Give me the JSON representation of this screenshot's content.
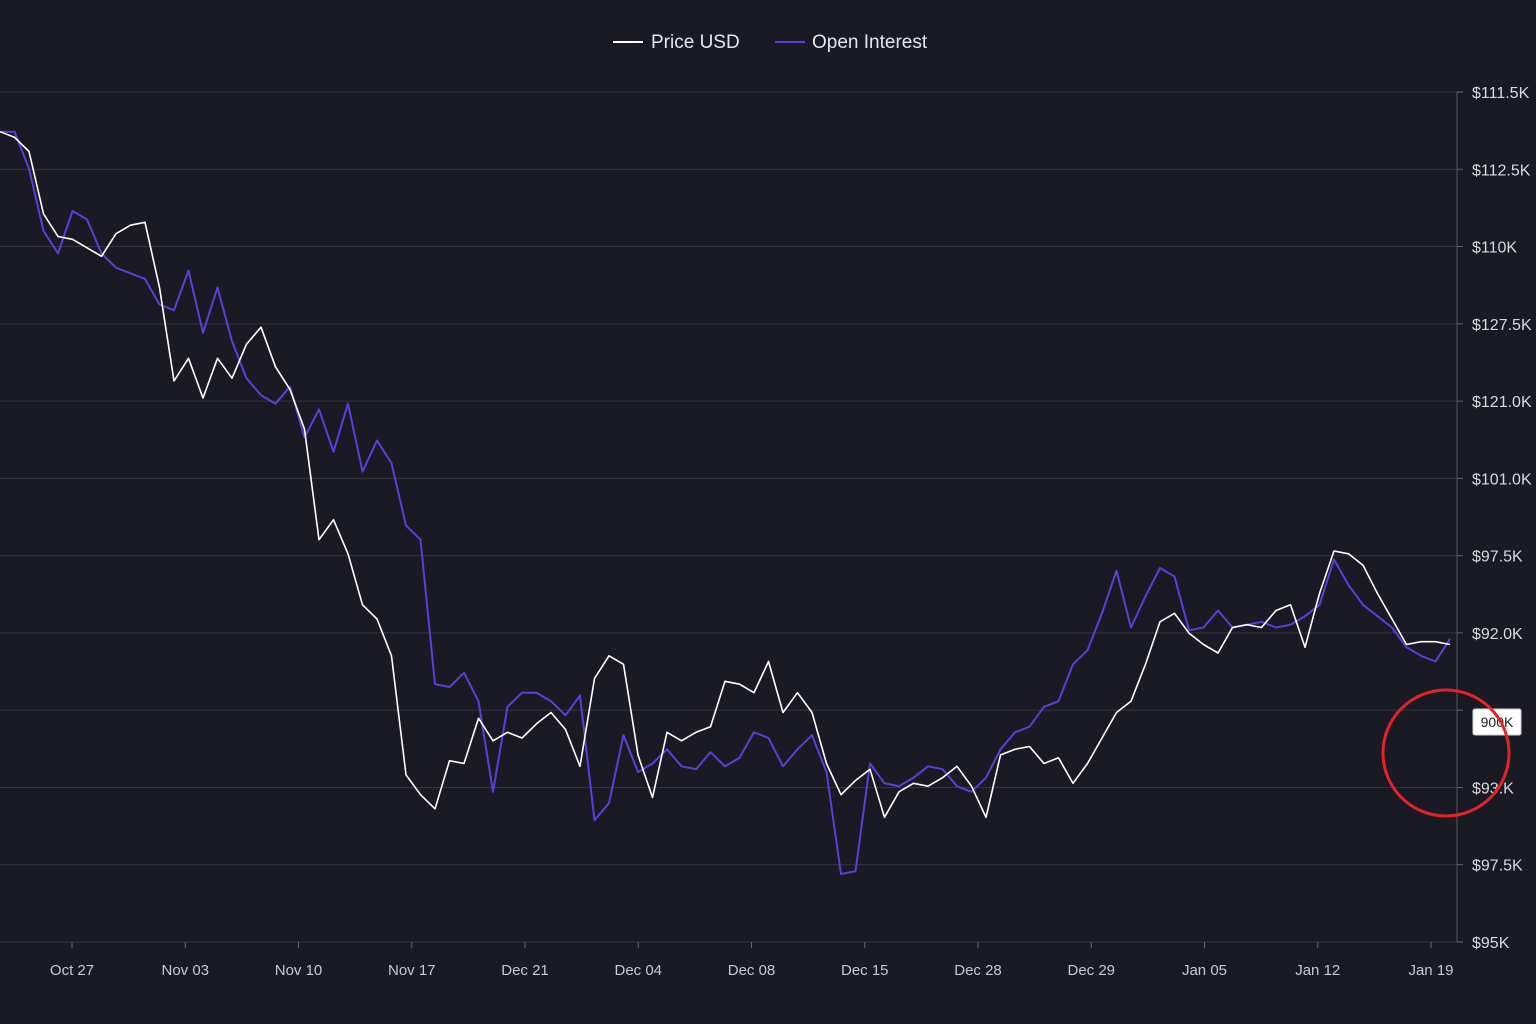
{
  "legend": {
    "price_label": "Price USD",
    "oi_label": "Open Interest"
  },
  "colors": {
    "background": "#1a1a25",
    "price_line": "#ffffff",
    "oi_line": "#5b3fd6",
    "grid": "#34343f",
    "highlight_circle": "#e0242a",
    "tooltip_bg": "#ffffff",
    "tooltip_text": "#222222"
  },
  "tooltip": {
    "label": "900K"
  },
  "chart_data": {
    "type": "line",
    "title": "",
    "xlabel": "",
    "ylabel": "",
    "legend_position": "top-center",
    "grid": "horizontal",
    "x_ticks": [
      "Oct 27",
      "Nov 03",
      "Nov 10",
      "Nov 17",
      "Dec 21",
      "Dec 04",
      "Dec 08",
      "Dec 15",
      "Dec 28",
      "Dec 29",
      "Jan 05",
      "Jan 12",
      "Jan 19"
    ],
    "y_ticks": [
      "$111.5K",
      "$112.5K",
      "$110K",
      "$127.5K",
      "$121.0K",
      "$101.0K",
      "$97.5K",
      "$92.0K",
      "",
      "$93.K",
      "$97.5K",
      "$95K"
    ],
    "y_scale": {
      "top": 115,
      "bottom": 85,
      "unit": "K USD",
      "note": "approximate, labels inconsistent"
    },
    "x_range": [
      0,
      100
    ],
    "series": [
      {
        "name": "Price USD",
        "color": "#ffffff",
        "x": [
          0,
          1,
          2,
          3,
          4,
          5,
          6,
          7,
          8,
          9,
          10,
          11,
          12,
          13,
          14,
          15,
          16,
          17,
          18,
          19,
          20,
          21,
          22,
          23,
          24,
          25,
          26,
          27,
          28,
          29,
          30,
          31,
          32,
          33,
          34,
          35,
          36,
          37,
          38,
          39,
          40,
          41,
          42,
          43,
          44,
          45,
          46,
          47,
          48,
          49,
          50,
          51,
          52,
          53,
          54,
          55,
          56,
          57,
          58,
          59,
          60,
          61,
          62,
          63,
          64,
          65,
          66,
          67,
          68,
          69,
          70,
          71,
          72,
          73,
          74,
          75,
          76,
          77,
          78,
          79,
          80,
          81,
          82,
          83,
          84,
          85,
          86,
          87,
          88,
          89,
          90,
          91,
          92,
          93,
          94,
          95,
          96,
          97,
          98,
          99,
          100
        ],
        "values": [
          113.6,
          113.4,
          112.9,
          110.7,
          109.9,
          109.8,
          109.5,
          109.2,
          110,
          110.3,
          110.4,
          108.1,
          104.8,
          105.6,
          104.2,
          105.6,
          104.9,
          106.1,
          106.7,
          105.3,
          104.5,
          103.1,
          99.2,
          99.9,
          98.7,
          96.9,
          96.4,
          95.1,
          90.9,
          90.2,
          89.7,
          91.4,
          91.3,
          92.9,
          92.1,
          92.4,
          92.2,
          92.7,
          93.1,
          92.5,
          91.2,
          94.3,
          95.1,
          94.8,
          91.6,
          90.1,
          92.4,
          92.1,
          92.4,
          92.6,
          94.2,
          94.1,
          93.8,
          94.9,
          93.1,
          93.8,
          93.1,
          91.3,
          90.2,
          90.7,
          91.1,
          89.4,
          90.3,
          90.6,
          90.5,
          90.8,
          91.2,
          90.5,
          89.4,
          91.6,
          91.8,
          91.9,
          91.3,
          91.5,
          90.6,
          91.3,
          92.2,
          93.1,
          93.5,
          94.8,
          96.3,
          96.6,
          95.9,
          95.5,
          95.2,
          96.1,
          96.2,
          96.1,
          96.7,
          96.9,
          95.4,
          97.3,
          98.8,
          98.7,
          98.3,
          97.3,
          96.4,
          95.5,
          95.6,
          95.6,
          95.5
        ]
      },
      {
        "name": "Open Interest",
        "color": "#5b3fd6",
        "x": [
          0,
          1,
          2,
          3,
          4,
          5,
          6,
          7,
          8,
          9,
          10,
          11,
          12,
          13,
          14,
          15,
          16,
          17,
          18,
          19,
          20,
          21,
          22,
          23,
          24,
          25,
          26,
          27,
          28,
          29,
          30,
          31,
          32,
          33,
          34,
          35,
          36,
          37,
          38,
          39,
          40,
          41,
          42,
          43,
          44,
          45,
          46,
          47,
          48,
          49,
          50,
          51,
          52,
          53,
          54,
          55,
          56,
          57,
          58,
          59,
          60,
          61,
          62,
          63,
          64,
          65,
          66,
          67,
          68,
          69,
          70,
          71,
          72,
          73,
          74,
          75,
          76,
          77,
          78,
          79,
          80,
          81,
          82,
          83,
          84,
          85,
          86,
          87,
          88,
          89,
          90,
          91,
          92,
          93,
          94,
          95,
          96,
          97,
          98,
          99,
          100
        ],
        "values": [
          113.6,
          113.6,
          112.3,
          110.1,
          109.3,
          110.8,
          110.5,
          109.3,
          108.8,
          108.6,
          108.4,
          107.5,
          107.3,
          108.7,
          106.5,
          108.1,
          106.2,
          104.9,
          104.3,
          104.0,
          104.6,
          102.8,
          103.8,
          102.3,
          104.0,
          101.6,
          102.7,
          101.9,
          99.7,
          99.2,
          94.1,
          94.0,
          94.5,
          93.5,
          90.3,
          93.3,
          93.8,
          93.8,
          93.5,
          93.0,
          93.7,
          89.3,
          89.9,
          92.3,
          91.0,
          91.3,
          91.8,
          91.2,
          91.1,
          91.7,
          91.2,
          91.5,
          92.4,
          92.2,
          91.2,
          91.8,
          92.3,
          91.0,
          87.4,
          87.5,
          91.3,
          90.6,
          90.5,
          90.8,
          91.2,
          91.1,
          90.5,
          90.3,
          90.8,
          91.8,
          92.4,
          92.6,
          93.3,
          93.5,
          94.8,
          95.3,
          96.6,
          98.1,
          96.1,
          97.2,
          98.2,
          97.9,
          96.0,
          96.1,
          96.7,
          96.1,
          96.2,
          96.3,
          96.1,
          96.2,
          96.5,
          96.9,
          98.5,
          97.6,
          96.9,
          96.5,
          96.1,
          95.4,
          95.1,
          94.9,
          95.7
        ]
      }
    ]
  }
}
